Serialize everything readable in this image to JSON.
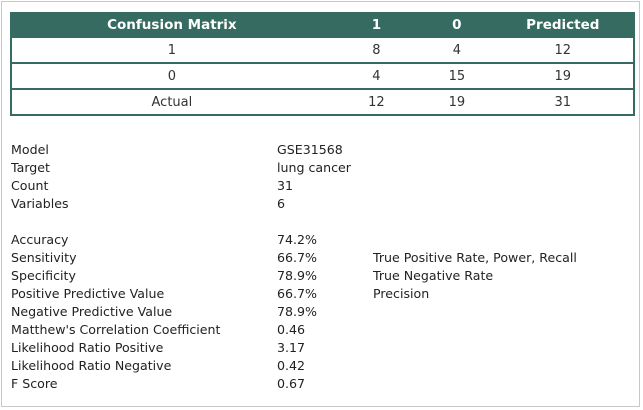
{
  "confusion_matrix": {
    "headers": [
      "Confusion Matrix",
      "1",
      "0",
      "Predicted"
    ],
    "rows": [
      [
        "1",
        "8",
        "4",
        "12"
      ],
      [
        "0",
        "4",
        "15",
        "19"
      ],
      [
        "Actual",
        "12",
        "19",
        "31"
      ]
    ]
  },
  "model_info": [
    {
      "label": "Model",
      "value": "GSE31568"
    },
    {
      "label": "Target",
      "value": "lung cancer"
    },
    {
      "label": "Count",
      "value": "31"
    },
    {
      "label": "Variables",
      "value": "6"
    }
  ],
  "metrics": [
    {
      "label": "Accuracy",
      "value": "74.2%",
      "note": ""
    },
    {
      "label": "Sensitivity",
      "value": "66.7%",
      "note": "True Positive Rate, Power, Recall"
    },
    {
      "label": "Specificity",
      "value": "78.9%",
      "note": "True Negative Rate"
    },
    {
      "label": "Positive Predictive Value",
      "value": "66.7%",
      "note": "Precision"
    },
    {
      "label": "Negative Predictive Value",
      "value": "78.9%",
      "note": ""
    },
    {
      "label": "Matthew's Correlation Coefficient",
      "value": "0.46",
      "note": ""
    },
    {
      "label": "Likelihood Ratio Positive",
      "value": "3.17",
      "note": ""
    },
    {
      "label": "Likelihood Ratio Negative",
      "value": "0.42",
      "note": ""
    },
    {
      "label": "F Score",
      "value": "0.67",
      "note": ""
    }
  ],
  "colors": {
    "header_bg": "#356b60",
    "header_text": "#ffffff"
  }
}
